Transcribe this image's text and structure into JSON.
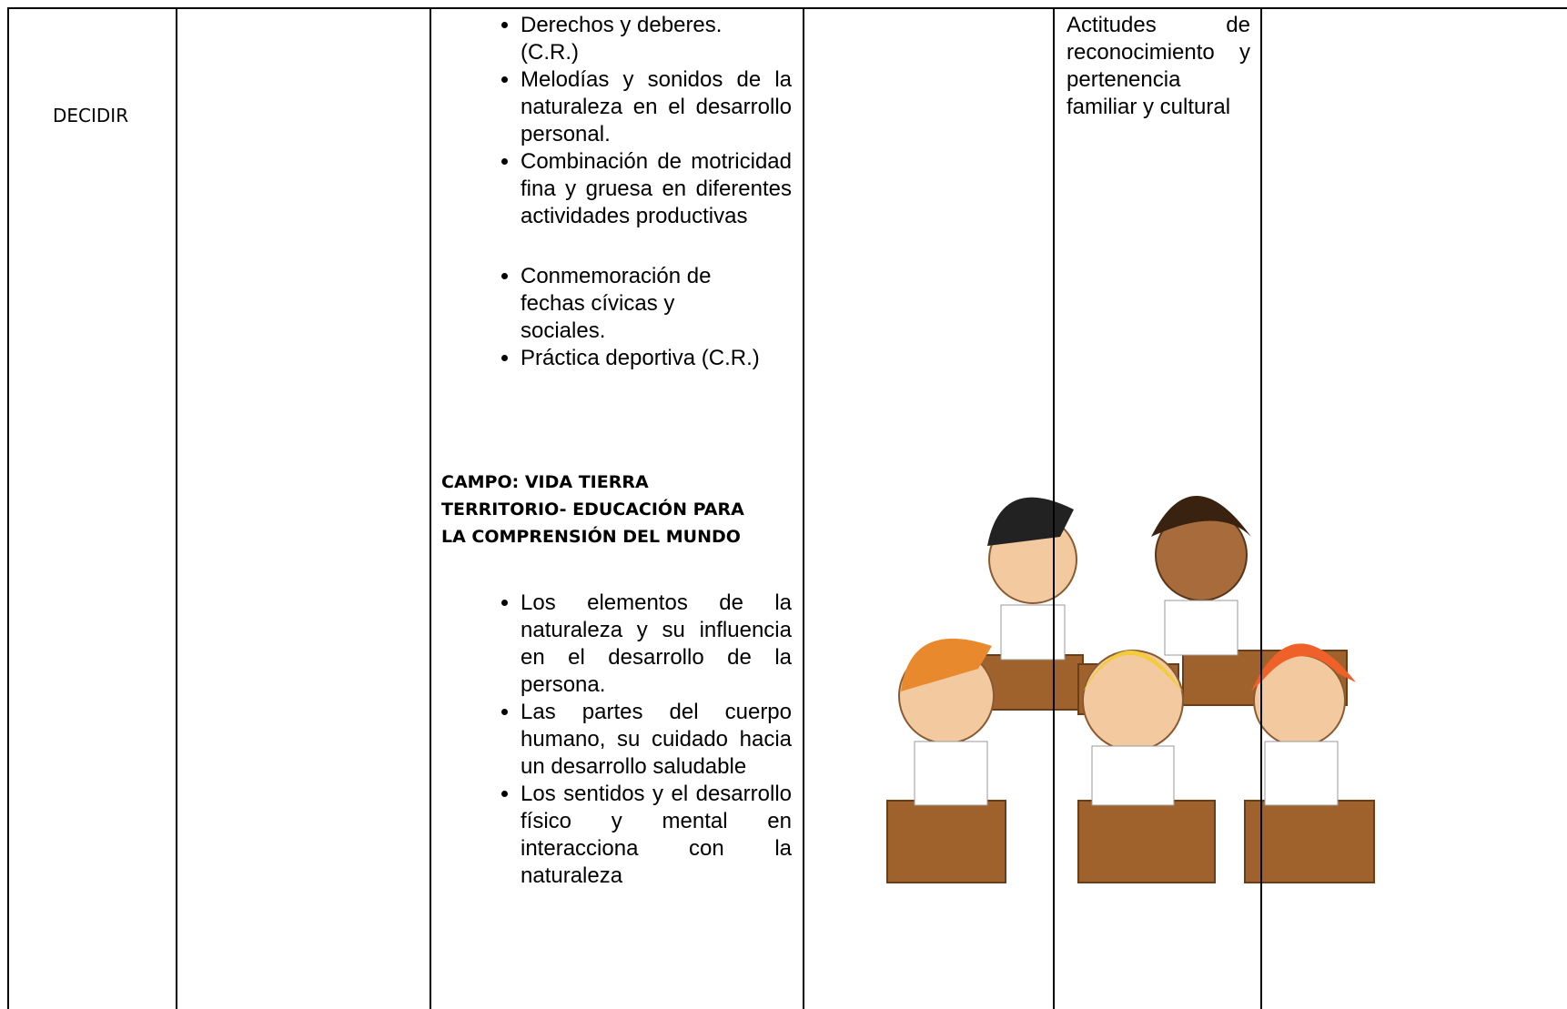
{
  "row": {
    "area": "DECIDIR",
    "contents": {
      "list_a": [
        "Derechos y deberes. (C.R.)"
      ],
      "list_b": [
        "Melodías y sonidos de la naturaleza en el desarrollo personal.",
        "Combinación de motricidad fina y gruesa en diferentes actividades productivas"
      ],
      "list_c": [
        "Conmemoración de fechas cívicas y sociales.",
        "Práctica deportiva (C.R.)"
      ],
      "heading": "CAMPO: VIDA TIERRA TERRITORIO- EDUCACIÓN PARA LA COMPRENSIÓN DEL MUNDO",
      "list_d": [
        "Los elementos de la naturaleza y su influencia en el desarrollo de la persona.",
        "Las partes del cuerpo humano, su cuidado hacia un desarrollo saludable",
        "Los sentidos y el desarrollo físico y mental en interacciona con la naturaleza"
      ]
    },
    "attitudes": "Actitudes de reconocimiento y pertenencia familiar y cultural"
  }
}
